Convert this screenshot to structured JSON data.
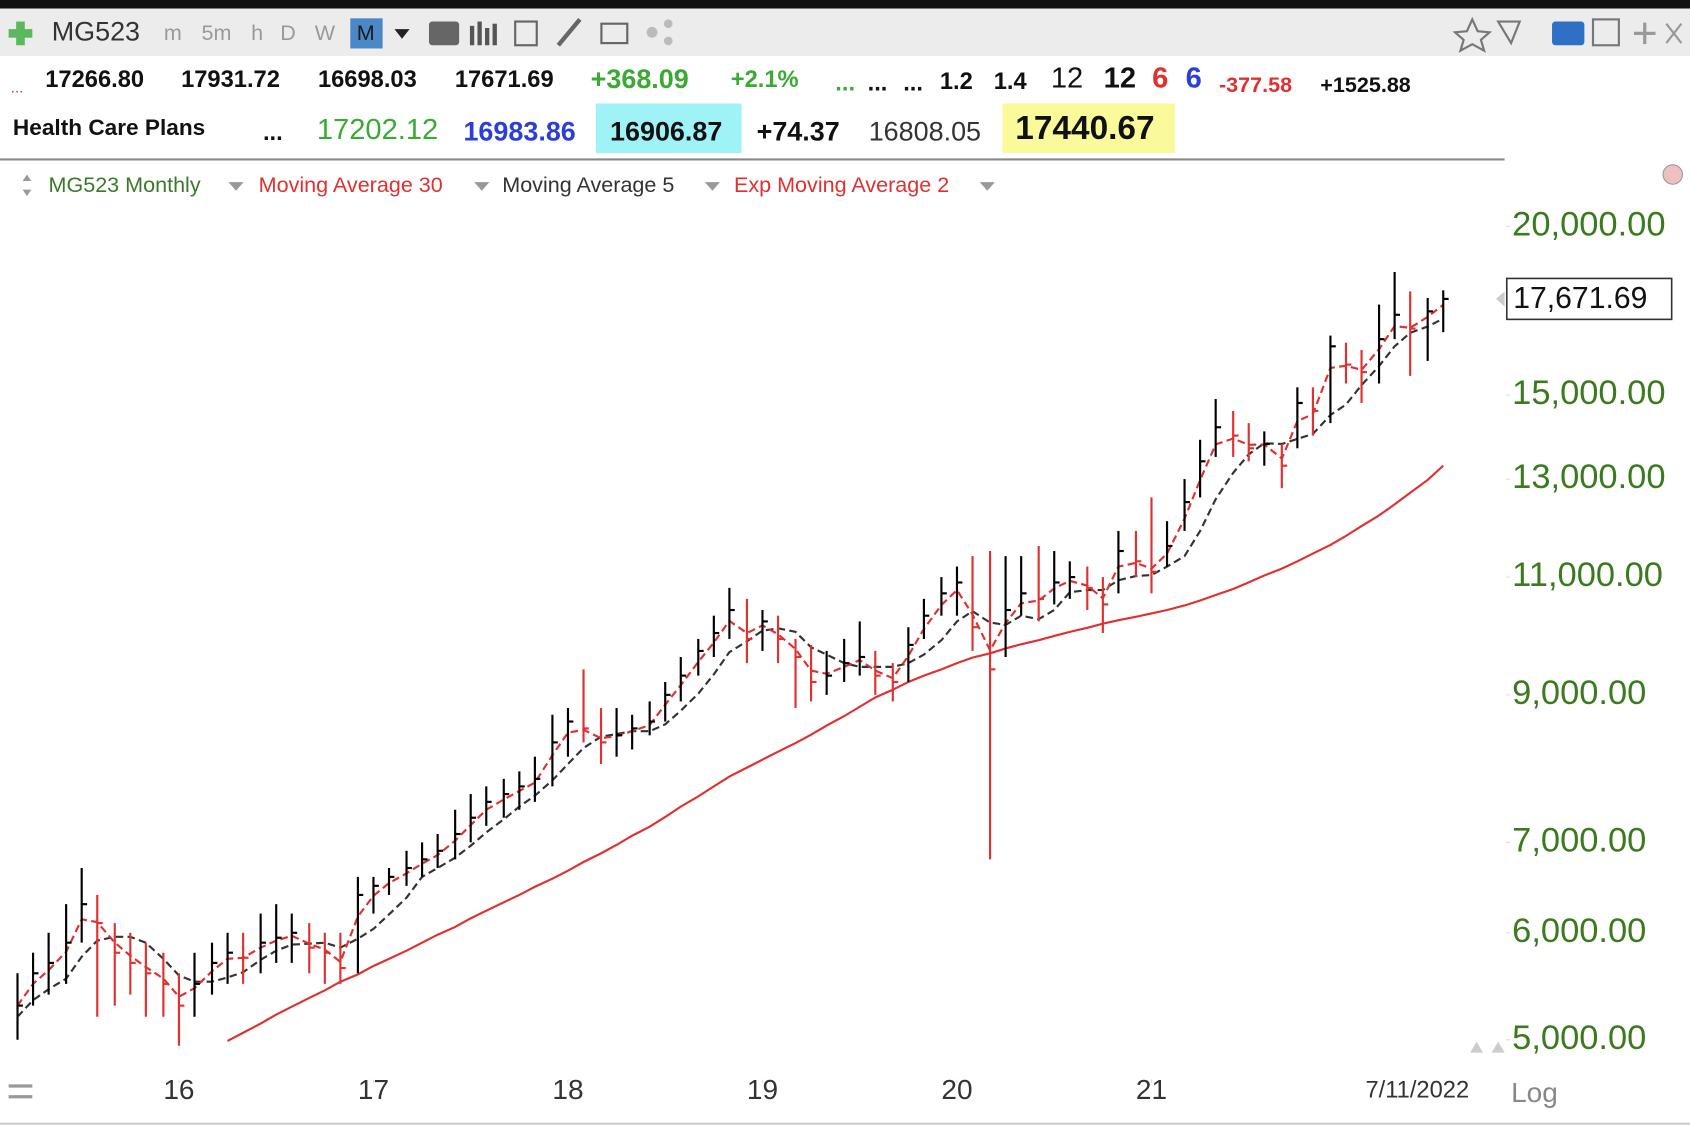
{
  "toolbar": {
    "symbol": "MG523",
    "intervals": [
      "m",
      "5m",
      "h",
      "D",
      "W",
      "M"
    ]
  },
  "quote": {
    "row1": [
      "...",
      "17266.80",
      "17931.72",
      "16698.03",
      "17671.69",
      "+368.09",
      "+2.1%",
      "...",
      "...",
      "...",
      "1.2",
      "1.4",
      "12",
      "12",
      "6",
      "6",
      "-377.58",
      "+1525.88"
    ],
    "row2": [
      "Health Care Plans",
      "...",
      "17202.12",
      "16983.86",
      "16906.87",
      "+74.37",
      "16808.05",
      "17440.67"
    ]
  },
  "chart_data": {
    "type": "ohlc",
    "legend": [
      "MG523 Monthly",
      "Moving Average 30",
      "Moving Average 5",
      "Exp Moving Average 2"
    ],
    "log_scale": true,
    "up_color": "#000000",
    "down_color": "#e03030",
    "ylim": [
      4690,
      22330
    ],
    "yticks": [
      {
        "value": 20000,
        "label": "20,000.00"
      },
      {
        "value": 15000,
        "label": "15,000.00"
      },
      {
        "value": 13000,
        "label": "13,000.00"
      },
      {
        "value": 11000,
        "label": "11,000.00"
      },
      {
        "value": 9000,
        "label": "9,000.00"
      },
      {
        "value": 7000,
        "label": "7,000.00"
      },
      {
        "value": 6000,
        "label": "6,000.00"
      },
      {
        "value": 5000,
        "label": "5,000.00"
      }
    ],
    "xlim": [
      15.08,
      22.81
    ],
    "xticks": [
      16,
      17,
      18,
      19,
      20,
      21
    ],
    "last_date": "7/11/2022",
    "scale_label": "Log",
    "last_price": {
      "value": 17671.69,
      "label": "17,671.69"
    },
    "x": [
      15.17,
      15.25,
      15.33,
      15.42,
      15.5,
      15.58,
      15.67,
      15.75,
      15.83,
      15.92,
      16,
      16.08,
      16.17,
      16.25,
      16.33,
      16.42,
      16.5,
      16.58,
      16.67,
      16.75,
      16.83,
      16.92,
      17,
      17.08,
      17.17,
      17.25,
      17.33,
      17.42,
      17.5,
      17.58,
      17.67,
      17.75,
      17.83,
      17.92,
      18,
      18.08,
      18.17,
      18.25,
      18.33,
      18.42,
      18.5,
      18.58,
      18.67,
      18.75,
      18.83,
      18.92,
      19,
      19.08,
      19.17,
      19.25,
      19.33,
      19.42,
      19.5,
      19.58,
      19.67,
      19.75,
      19.83,
      19.92,
      20,
      20.08,
      20.17,
      20.25,
      20.33,
      20.42,
      20.5,
      20.58,
      20.67,
      20.75,
      20.83,
      20.92,
      21,
      21.08,
      21.17,
      21.25,
      21.33,
      21.42,
      21.5,
      21.58,
      21.67,
      21.75,
      21.83,
      21.92,
      22,
      22.08,
      22.17,
      22.25,
      22.33,
      22.42,
      22.5
    ],
    "high": [
      5600,
      5800,
      6000,
      6300,
      6700,
      6400,
      6100,
      6000,
      5900,
      5800,
      5600,
      5800,
      5900,
      6000,
      6000,
      6200,
      6300,
      6200,
      6100,
      6000,
      6000,
      6600,
      6600,
      6700,
      6900,
      7000,
      7100,
      7400,
      7600,
      7700,
      7800,
      7900,
      8100,
      8700,
      8800,
      9400,
      8800,
      8800,
      8700,
      8900,
      9200,
      9600,
      9900,
      10300,
      10800,
      10600,
      10400,
      10300,
      9900,
      9800,
      9700,
      9900,
      10200,
      9700,
      9500,
      10100,
      10600,
      11000,
      11200,
      11400,
      11500,
      11400,
      11400,
      11600,
      11500,
      11300,
      11200,
      11000,
      11900,
      11900,
      12600,
      12100,
      13000,
      13900,
      14900,
      14600,
      14300,
      14100,
      13800,
      15200,
      15200,
      16600,
      16400,
      16200,
      17500,
      18500,
      17900,
      17700,
      17931.72
    ],
    "low": [
      5000,
      5300,
      5400,
      5500,
      5900,
      5200,
      5300,
      5400,
      5200,
      5200,
      4950,
      5200,
      5400,
      5500,
      5500,
      5600,
      5700,
      5700,
      5600,
      5500,
      5500,
      5600,
      6200,
      6400,
      6500,
      6600,
      6700,
      6800,
      7000,
      7200,
      7300,
      7400,
      7500,
      7700,
      8100,
      8300,
      8000,
      8100,
      8200,
      8400,
      8600,
      8900,
      9300,
      9600,
      9900,
      9500,
      9700,
      9500,
      8800,
      8900,
      9000,
      9200,
      9300,
      9000,
      8900,
      9200,
      9900,
      10300,
      10300,
      9700,
      6800,
      9600,
      10300,
      10200,
      10500,
      10600,
      10400,
      10000,
      10700,
      11000,
      10700,
      11200,
      11900,
      12600,
      13500,
      13500,
      13400,
      13300,
      12800,
      13700,
      14000,
      14300,
      15300,
      14800,
      15300,
      16500,
      15500,
      15900,
      16698.03
    ],
    "close": [
      5300,
      5600,
      5700,
      5900,
      6300,
      6100,
      5800,
      5700,
      5600,
      5500,
      5300,
      5500,
      5700,
      5800,
      5750,
      5900,
      5950,
      6000,
      5850,
      5800,
      5650,
      6400,
      6500,
      6600,
      6700,
      6800,
      6900,
      7100,
      7300,
      7500,
      7600,
      7700,
      7800,
      8300,
      8600,
      8500,
      8300,
      8400,
      8500,
      8600,
      9000,
      9300,
      9700,
      10000,
      10400,
      9900,
      10200,
      9900,
      9600,
      9200,
      9300,
      9500,
      9600,
      9300,
      9200,
      9800,
      10300,
      10700,
      10900,
      10100,
      9400,
      10400,
      10700,
      10600,
      10900,
      11000,
      10800,
      10500,
      11500,
      11300,
      11100,
      11600,
      12500,
      13400,
      14200,
      14000,
      13700,
      13800,
      13300,
      14800,
      14600,
      16300,
      15800,
      15600,
      16500,
      17200,
      16800,
      17300,
      17671.69
    ],
    "series": [
      {
        "name": "Moving Average 30",
        "color": "#e03030",
        "dashed": false,
        "values": [
          null,
          null,
          null,
          null,
          null,
          null,
          null,
          null,
          null,
          null,
          null,
          null,
          null,
          4990,
          5060,
          5140,
          5220,
          5290,
          5370,
          5440,
          5520,
          5590,
          5670,
          5740,
          5820,
          5900,
          5980,
          6060,
          6150,
          6230,
          6320,
          6400,
          6490,
          6580,
          6670,
          6770,
          6870,
          6970,
          7080,
          7190,
          7310,
          7440,
          7570,
          7700,
          7830,
          7950,
          8060,
          8170,
          8290,
          8410,
          8540,
          8680,
          8820,
          8960,
          9080,
          9200,
          9300,
          9400,
          9500,
          9590,
          9660,
          9740,
          9810,
          9880,
          9950,
          10020,
          10090,
          10160,
          10220,
          10280,
          10340,
          10400,
          10480,
          10570,
          10670,
          10780,
          10900,
          11030,
          11160,
          11300,
          11450,
          11620,
          11800,
          12000,
          12220,
          12450,
          12700,
          12980,
          13300
        ]
      },
      {
        "name": "Moving Average 5",
        "color": "#333333",
        "dashed": true,
        "values": [
          5200,
          5350,
          5450,
          5550,
          5760,
          5920,
          5960,
          5960,
          5900,
          5740,
          5580,
          5520,
          5520,
          5560,
          5610,
          5730,
          5820,
          5880,
          5890,
          5900,
          5850,
          5940,
          6040,
          6190,
          6370,
          6600,
          6700,
          6820,
          6960,
          7120,
          7280,
          7440,
          7580,
          7780,
          8000,
          8220,
          8380,
          8420,
          8460,
          8460,
          8560,
          8760,
          9020,
          9320,
          9680,
          9860,
          10040,
          10080,
          10020,
          9760,
          9640,
          9500,
          9440,
          9440,
          9440,
          9500,
          9640,
          9880,
          10200,
          10380,
          10180,
          10140,
          10300,
          10240,
          10400,
          10720,
          10760,
          10760,
          10940,
          11020,
          11040,
          11200,
          11400,
          11900,
          12560,
          13140,
          13560,
          13820,
          13800,
          13920,
          14040,
          14500,
          14760,
          15260,
          15760,
          16300,
          16680,
          16860,
          17090
        ]
      },
      {
        "name": "Exp Moving Average 2",
        "color": "#e03030",
        "dashed": true,
        "values": [
          5300,
          5500,
          5630,
          5810,
          6140,
          6110,
          5900,
          5770,
          5660,
          5550,
          5380,
          5460,
          5620,
          5740,
          5750,
          5850,
          5920,
          5970,
          5890,
          5830,
          5710,
          6170,
          6390,
          6530,
          6640,
          6750,
          6850,
          7020,
          7210,
          7400,
          7530,
          7640,
          7750,
          8120,
          8440,
          8480,
          8360,
          8390,
          8460,
          8550,
          8850,
          9150,
          9520,
          9840,
          10210,
          10000,
          10130,
          9980,
          9730,
          9380,
          9330,
          9440,
          9550,
          9380,
          9260,
          9620,
          10070,
          10490,
          10760,
          10320,
          9710,
          10170,
          10520,
          10570,
          10790,
          10930,
          10840,
          10610,
          11200,
          11270,
          11160,
          11450,
          12150,
          12980,
          13790,
          13930,
          13780,
          13790,
          13460,
          14350,
          14520,
          15710,
          15770,
          15660,
          16220,
          16870,
          16820,
          17140,
          17495
        ]
      }
    ]
  }
}
